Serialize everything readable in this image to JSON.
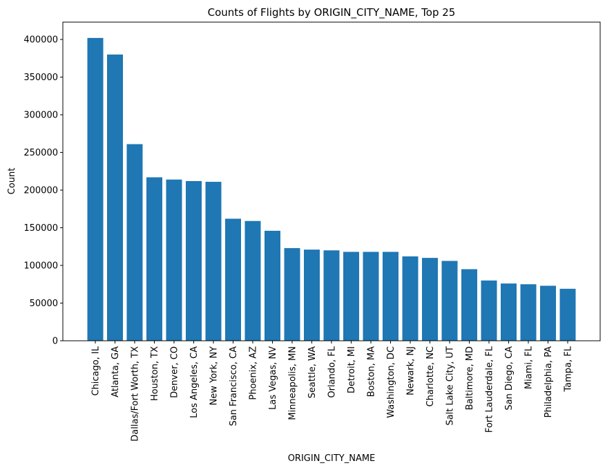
{
  "chart_data": {
    "type": "bar",
    "title": "Counts of Flights by ORIGIN_CITY_NAME, Top 25",
    "xlabel": "ORIGIN_CITY_NAME",
    "ylabel": "Count",
    "ylim": [
      0,
      423000
    ],
    "yticks": [
      0,
      50000,
      100000,
      150000,
      200000,
      250000,
      300000,
      350000,
      400000
    ],
    "grid": false,
    "bar_color": "#1f77b4",
    "categories": [
      "Chicago, IL",
      "Atlanta, GA",
      "Dallas/Fort Worth, TX",
      "Houston, TX",
      "Denver, CO",
      "Los Angeles, CA",
      "New York, NY",
      "San Francisco, CA",
      "Phoenix, AZ",
      "Las Vegas, NV",
      "Minneapolis, MN",
      "Seattle, WA",
      "Orlando, FL",
      "Detroit, MI",
      "Boston, MA",
      "Washington, DC",
      "Newark, NJ",
      "Charlotte, NC",
      "Salt Lake City, UT",
      "Baltimore, MD",
      "Fort Lauderdale, FL",
      "San Diego, CA",
      "Miami, FL",
      "Philadelphia, PA",
      "Tampa, FL"
    ],
    "values": [
      402000,
      380000,
      261000,
      217000,
      214000,
      212000,
      211000,
      162000,
      159000,
      146000,
      123000,
      121000,
      120000,
      118000,
      118000,
      118000,
      112000,
      110000,
      106000,
      95000,
      80000,
      76000,
      75000,
      73000,
      69000
    ]
  }
}
